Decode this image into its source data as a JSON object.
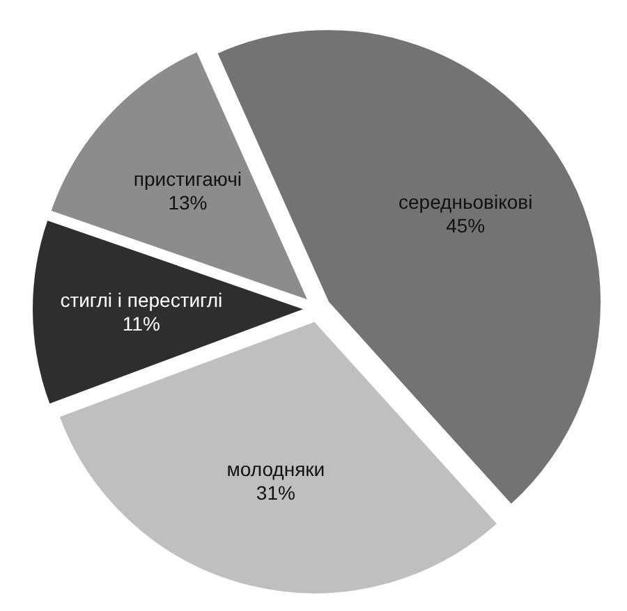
{
  "chart_data": {
    "type": "pie",
    "categories": [
      "середньовікові",
      "молодняки",
      "стиглі і перестиглі",
      "пристигаючі"
    ],
    "values": [
      45,
      31,
      11,
      13
    ],
    "value_labels": [
      "45%",
      "31%",
      "11%",
      "13%"
    ],
    "colors": [
      "#737373",
      "#bfbfbf",
      "#2e2e2e",
      "#8c8c8c"
    ]
  }
}
